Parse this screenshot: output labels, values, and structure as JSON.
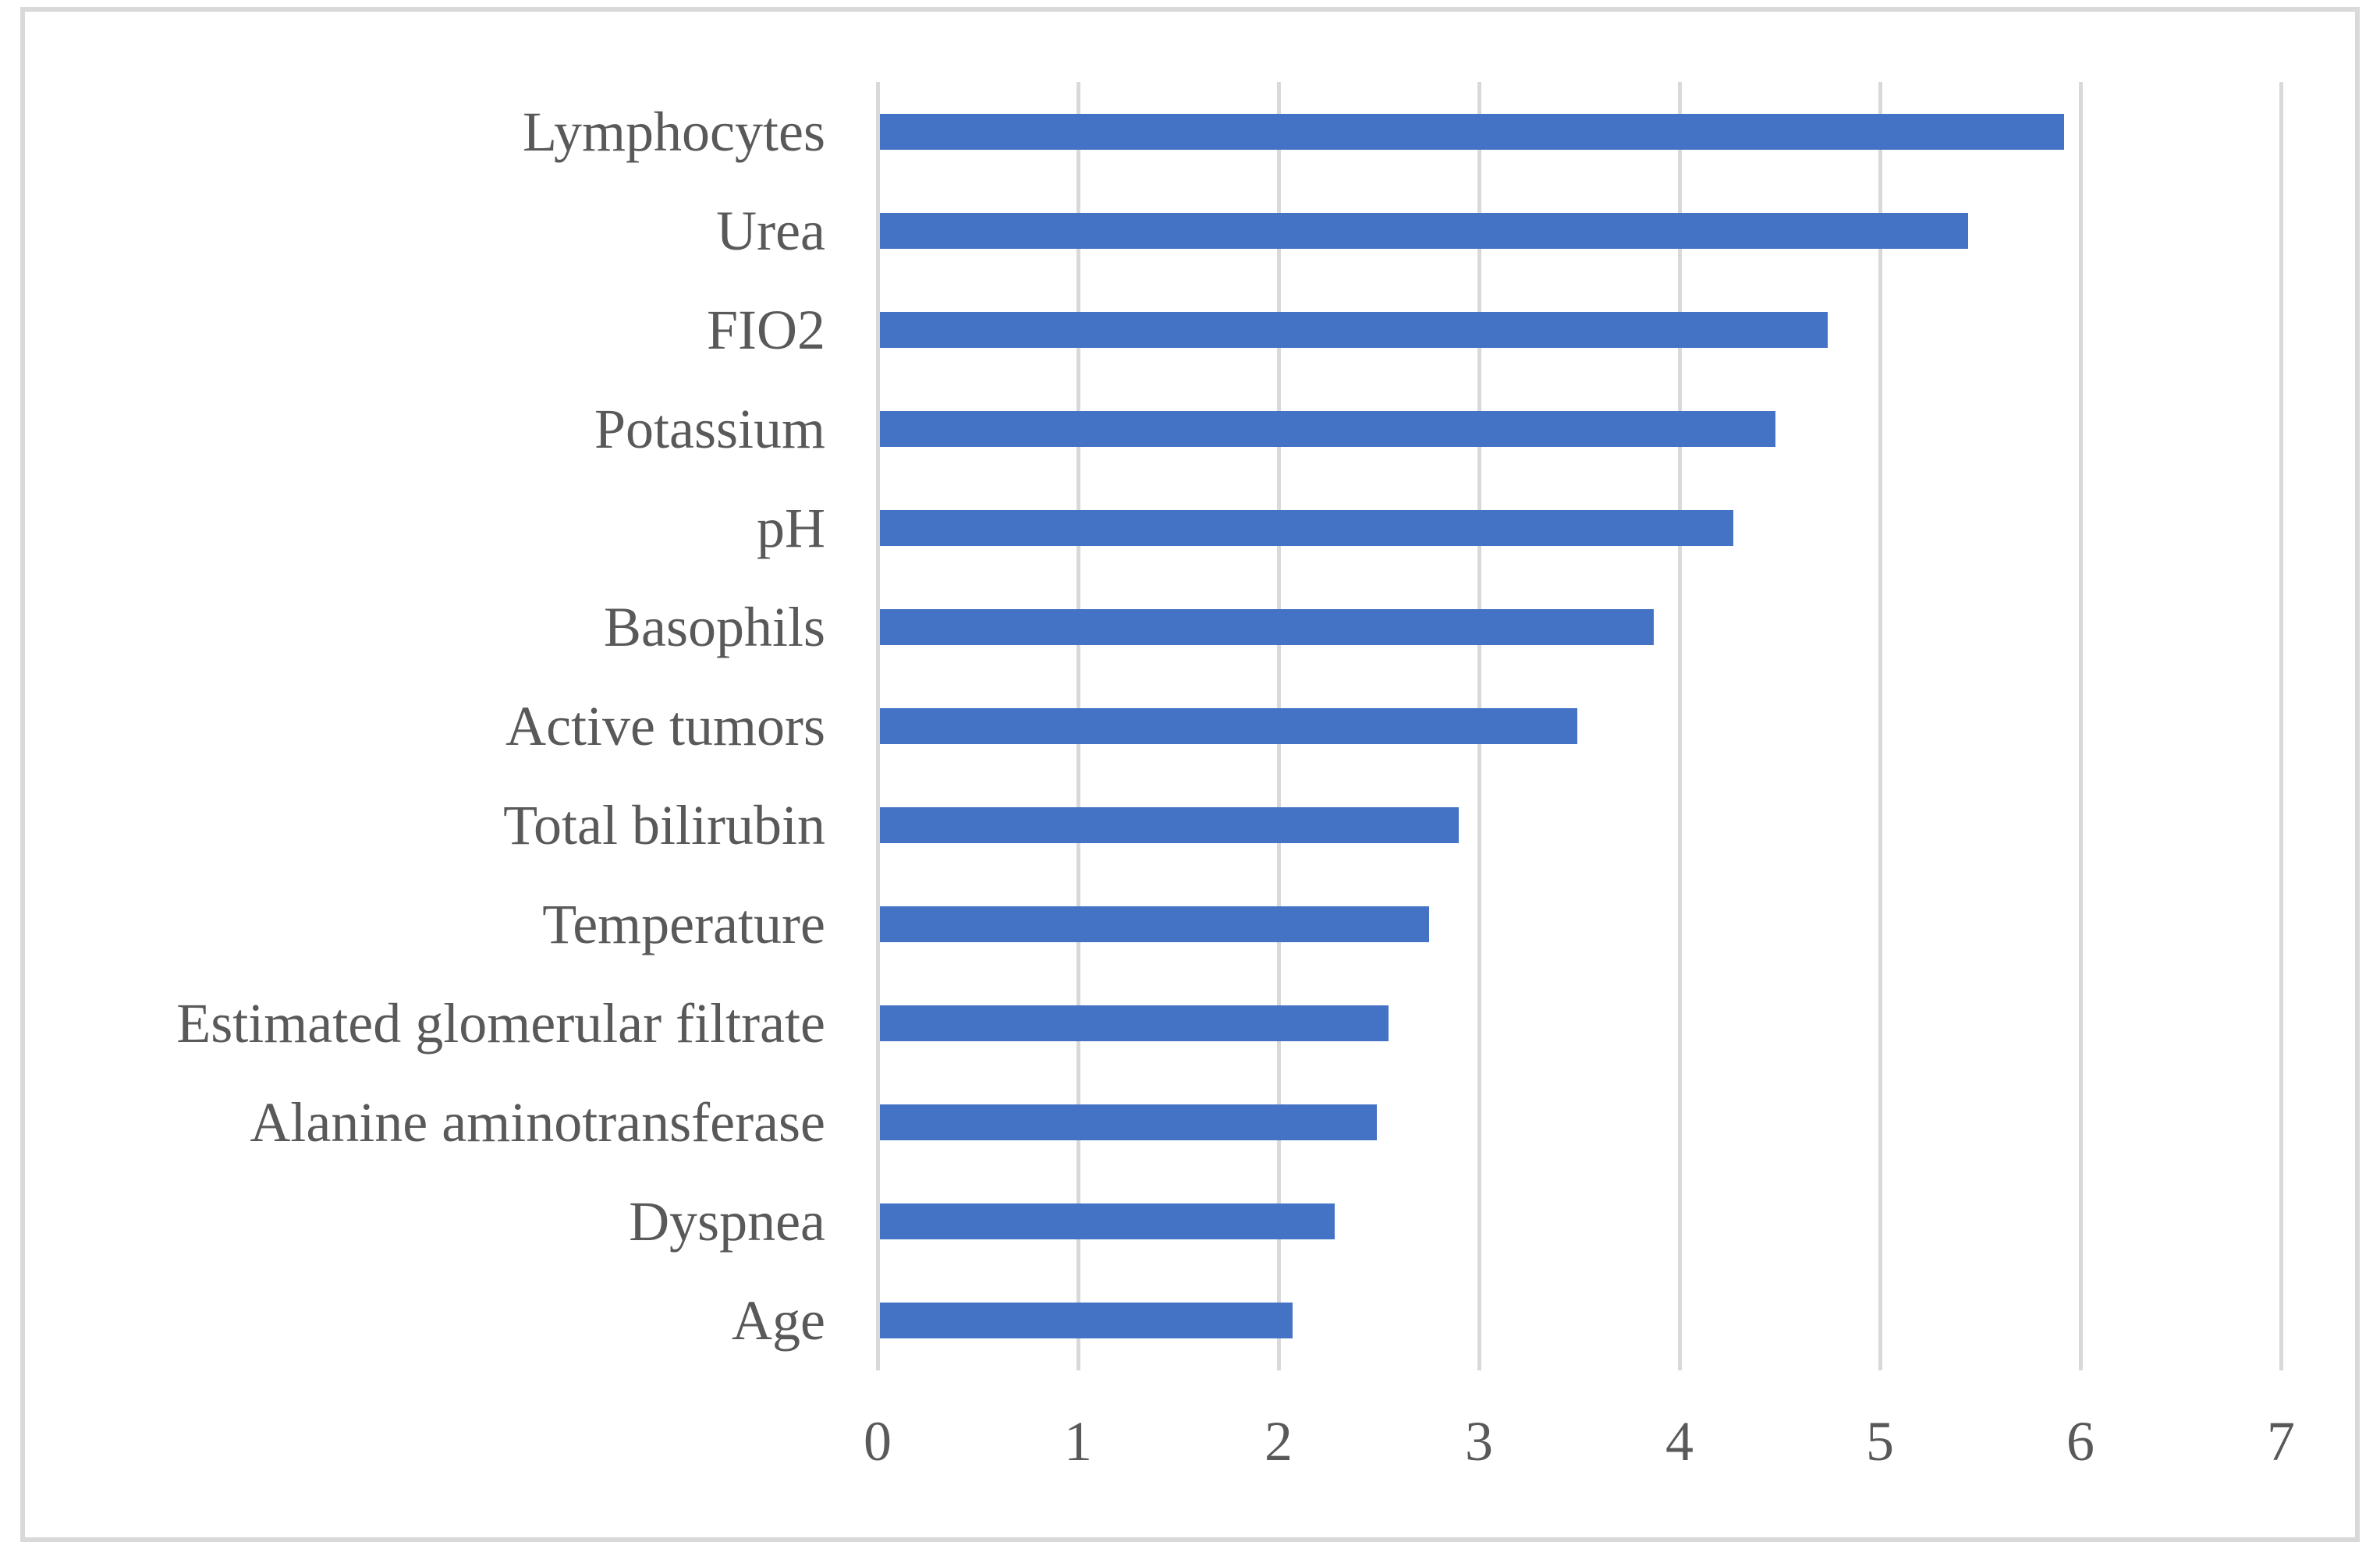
{
  "figure": {
    "background_color": "#FFFFFF",
    "frame_border_color": "#D9D9D9"
  },
  "chart_data": {
    "type": "bar",
    "orientation": "horizontal",
    "title": "",
    "xlabel": "",
    "ylabel": "",
    "categories": [
      "Lymphocytes",
      "Urea",
      "FIO2",
      "Potassium",
      "pH",
      "Basophils",
      "Active tumors",
      "Total bilirubin",
      "Temperature",
      "Estimated glomerular filtrate",
      "Alanine aminotransferase",
      "Dyspnea",
      "Age"
    ],
    "values": [
      5.92,
      5.44,
      4.74,
      4.48,
      4.27,
      3.87,
      3.49,
      2.9,
      2.75,
      2.55,
      2.49,
      2.28,
      2.07
    ],
    "xlim": [
      0,
      7
    ],
    "x_ticks": [
      "0",
      "1",
      "2",
      "3",
      "4",
      "5",
      "6",
      "7"
    ],
    "grid": true,
    "legend": false,
    "bar_color": "#4472C4",
    "gridline_color": "#D9D9D9",
    "label_color": "#595959"
  }
}
